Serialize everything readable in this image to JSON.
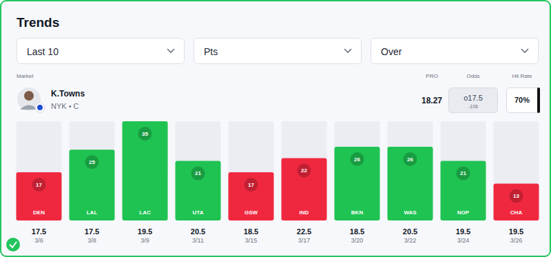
{
  "title": "Trends",
  "filters": [
    "Last 10",
    "Pts",
    "Over"
  ],
  "columns": {
    "market": "Market",
    "pro": "PRO",
    "odds": "Odds",
    "hit_rate": "Hit Rate"
  },
  "player": {
    "name": "K.Towns",
    "team": "NYK • C",
    "pro": 18.27,
    "odds": "o17.5",
    "odds_price": "-106",
    "hit_rate": "70%"
  },
  "chart_data": {
    "type": "bar",
    "categories": [
      "DEN",
      "LAL",
      "LAC",
      "UTA",
      "GSW",
      "IND",
      "BKN",
      "WAS",
      "NOP",
      "CHA"
    ],
    "values": [
      17,
      25,
      35,
      21,
      17,
      22,
      26,
      26,
      21,
      13
    ],
    "colors": [
      "#f0283f",
      "#1fc352",
      "#1fc352",
      "#1fc352",
      "#f0283f",
      "#f0283f",
      "#1fc352",
      "#1fc352",
      "#1fc352",
      "#f0283f"
    ],
    "lines": [
      17.5,
      17.5,
      19.5,
      20.5,
      18.5,
      22.5,
      18.5,
      20.5,
      19.5,
      19.5
    ],
    "dates": [
      "3/6",
      "3/8",
      "3/9",
      "3/11",
      "3/15",
      "3/17",
      "3/20",
      "3/22",
      "3/24",
      "3/26"
    ],
    "ylim": [
      0,
      35
    ],
    "grid": false,
    "tick_labels": false,
    "data_labels": true
  }
}
